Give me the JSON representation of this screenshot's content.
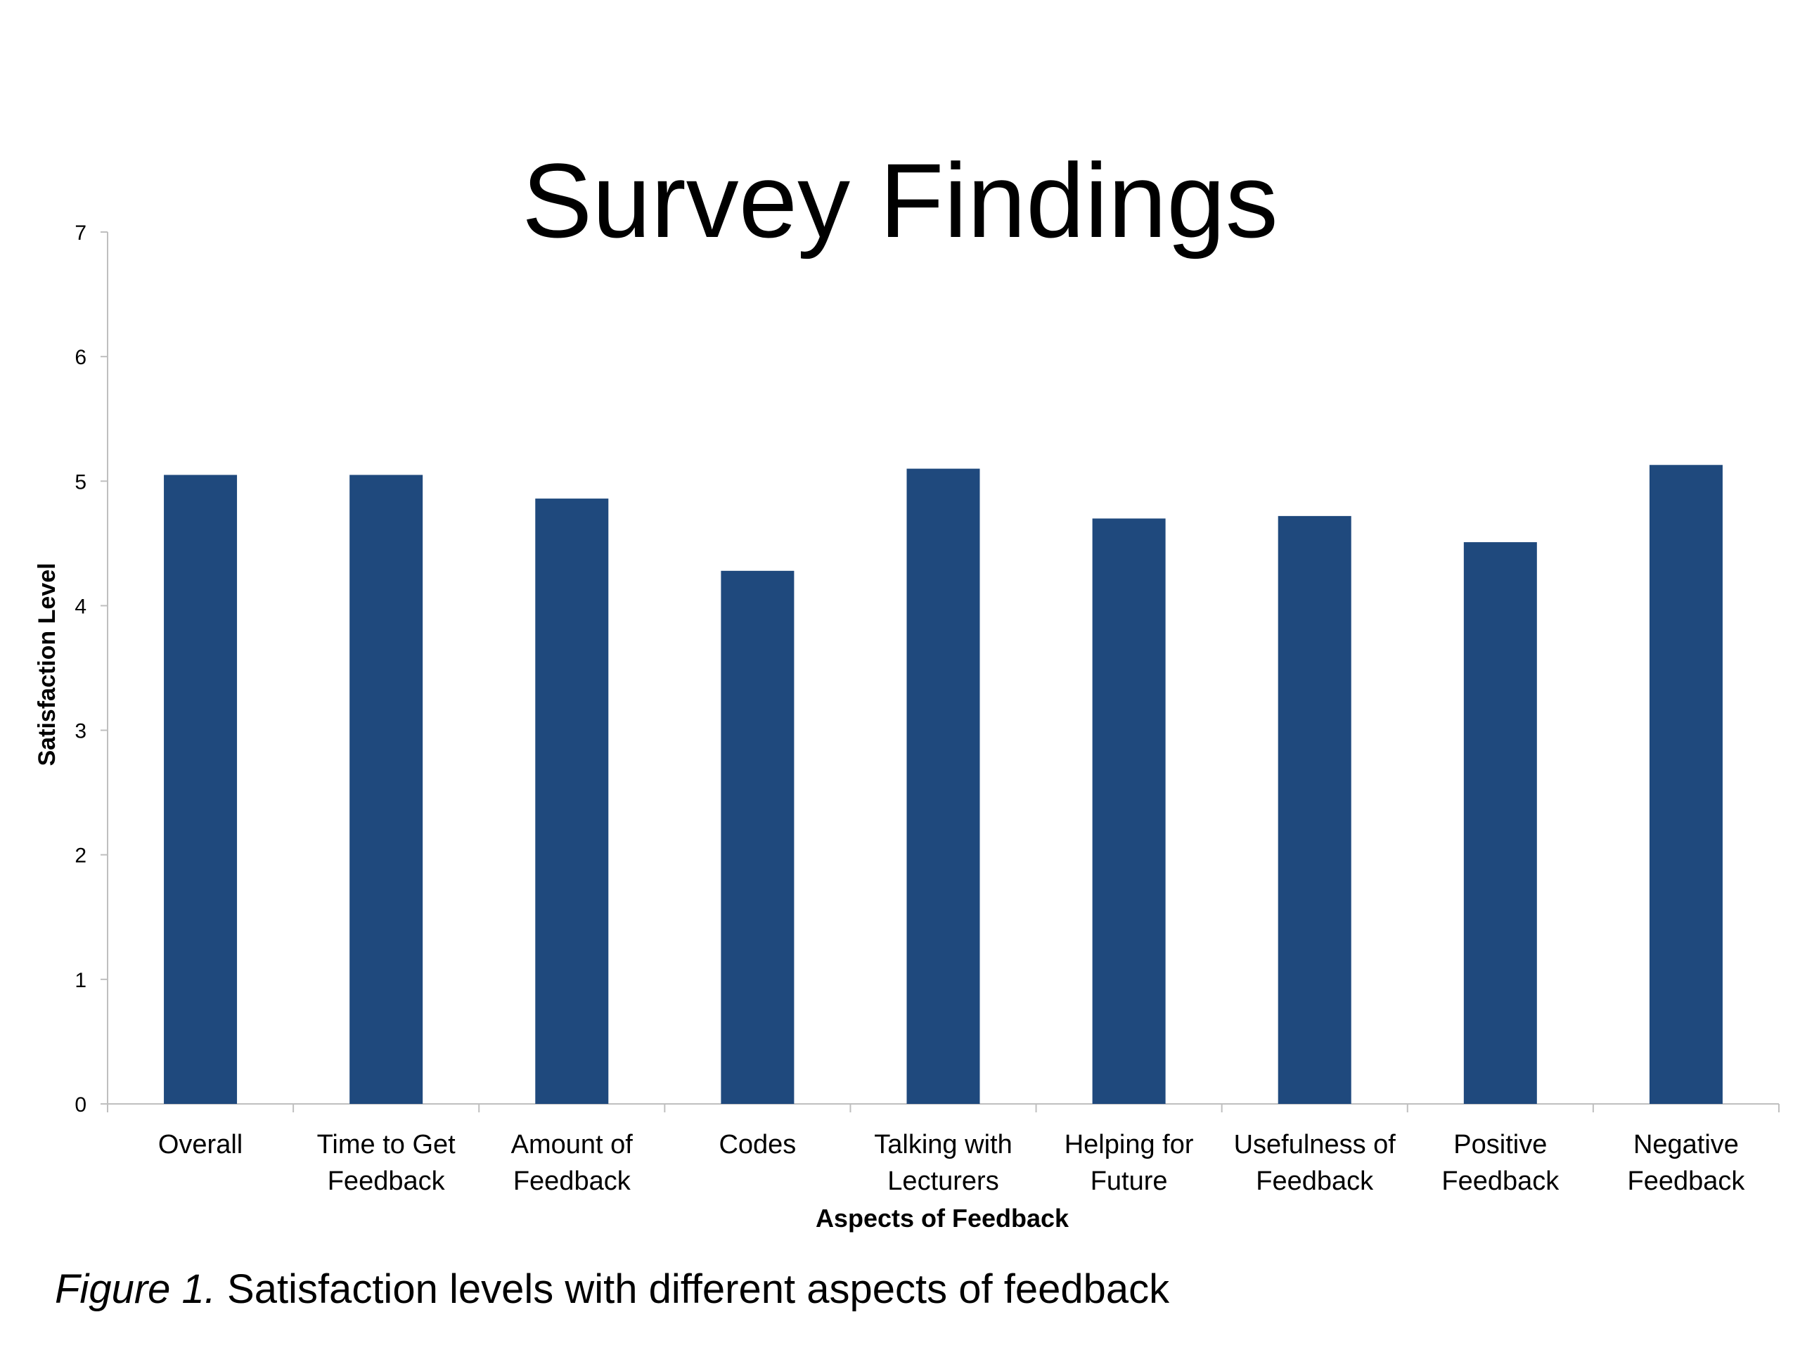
{
  "slide": {
    "title": "Survey Findings",
    "caption_prefix": "Figure 1.",
    "caption_text": " Satisfaction levels with different aspects of feedback"
  },
  "chart_data": {
    "type": "bar",
    "categories": [
      [
        "Overall"
      ],
      [
        "Time to Get",
        "Feedback"
      ],
      [
        "Amount of",
        "Feedback"
      ],
      [
        "Codes"
      ],
      [
        "Talking with",
        "Lecturers"
      ],
      [
        "Helping for",
        "Future"
      ],
      [
        "Usefulness of",
        "Feedback"
      ],
      [
        "Positive",
        "Feedback"
      ],
      [
        "Negative",
        "Feedback"
      ]
    ],
    "values": [
      5.05,
      5.05,
      4.86,
      4.28,
      5.1,
      4.7,
      4.72,
      4.51,
      5.13
    ],
    "xlabel": "Aspects of Feedback",
    "ylabel": "Satisfaction Level",
    "ylim": [
      0,
      7
    ],
    "yticks": [
      0,
      1,
      2,
      3,
      4,
      5,
      6,
      7
    ],
    "grid": false,
    "legend": "none",
    "bar_color": "#1f497d",
    "axis_color": "#bfbfbf"
  }
}
